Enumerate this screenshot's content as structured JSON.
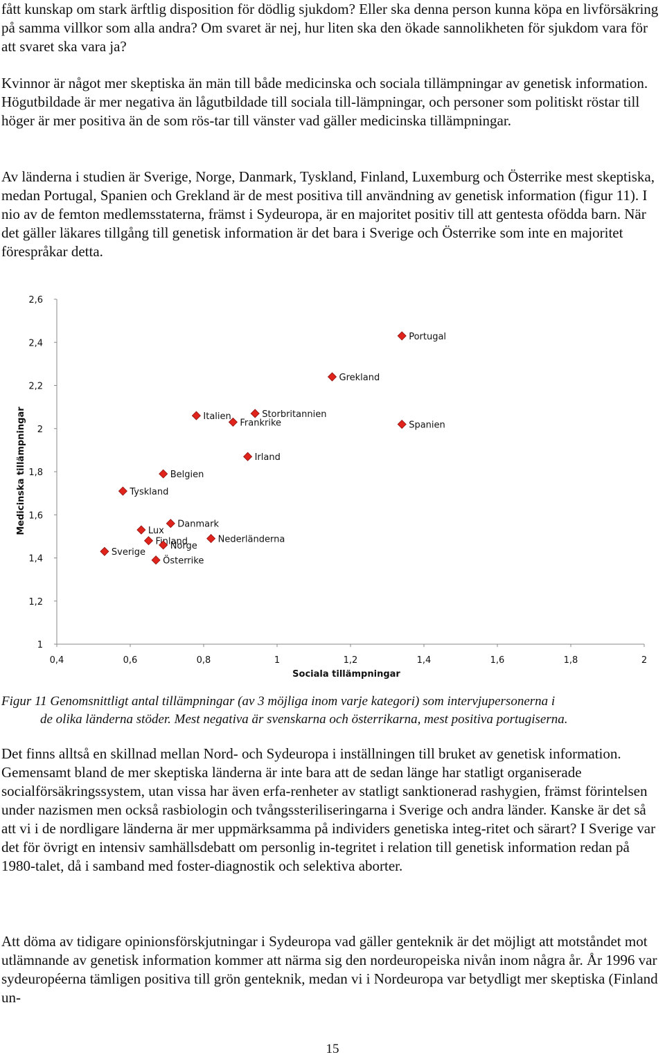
{
  "paragraphs": {
    "p1": "fått kunskap om stark ärftlig disposition för dödlig sjukdom? Eller ska denna person kunna köpa en livförsäkring på samma villkor som alla andra? Om svaret är nej, hur liten ska den ökade sannolikheten för sjukdom vara för att svaret ska vara ja?",
    "p2": "Kvinnor är något mer skeptiska än män till både medicinska och sociala tillämpningar av genetisk information. Högutbildade är mer negativa än lågutbildade till sociala till-lämpningar, och personer som politiskt röstar till höger är mer positiva än de som rös-tar till vänster vad gäller medicinska tillämpningar.",
    "p3": "Av länderna i studien är Sverige, Norge, Danmark, Tyskland, Finland, Luxemburg och Österrike mest skeptiska, medan Portugal, Spanien och Grekland är de mest positiva till användning av genetisk information (figur 11). I nio av de femton medlemsstaterna, främst i Sydeuropa, är en majoritet positiv till att gentesta ofödda barn. När det gäller läkares tillgång till genetisk information är det bara i Sverige och Österrike som inte en majoritet förespråkar detta.",
    "p4": "Det finns alltså en skillnad mellan Nord- och Sydeuropa i inställningen till bruket av genetisk information. Gemensamt bland de mer skeptiska länderna är inte bara att de sedan länge har statligt organiserade socialförsäkringssystem, utan vissa har även erfa-renheter av statligt sanktionerad rashygien, främst förintelsen under nazismen men också rasbiologin och tvångssteriliseringarna i Sverige och andra länder. Kanske är det så att vi i de nordligare länderna är mer uppmärksamma på individers genetiska integ-ritet och särart? I Sverige var det för övrigt en intensiv samhällsdebatt om personlig in-tegritet i relation till genetisk information redan på 1980-talet, då i samband med foster-diagnostik och selektiva aborter.",
    "p5": "Att döma av tidigare opinionsförskjutningar i Sydeuropa vad gäller genteknik är det möjligt att motståndet mot utlämnande av genetisk information kommer att närma sig den nordeuropeiska nivån inom några år. År 1996 var sydeuropéerna tämligen positiva till grön genteknik, medan vi i Nordeuropa var betydligt mer skeptiska (Finland un-"
  },
  "caption": {
    "line1": "Figur 11 Genomsnittligt antal tillämpningar (av 3 möjliga inom varje kategori) som intervjupersonerna i",
    "line2": "de olika länderna stöder. Mest negativa är svenskarna och österrikarna, mest positiva portugiserna."
  },
  "page_number": "15",
  "colors": {
    "marker": "#e0241b",
    "marker_edge": "#8a1010",
    "axis": "#888888",
    "text": "#111111"
  },
  "chart_data": {
    "type": "scatter",
    "title": "",
    "xlabel": "Sociala tillämpningar",
    "ylabel": "Medicinska tillämpningar",
    "xlim": [
      0.4,
      2
    ],
    "ylim": [
      1,
      2.6
    ],
    "x_ticks": [
      0.4,
      0.6,
      0.8,
      1,
      1.2,
      1.4,
      1.6,
      1.8,
      2
    ],
    "x_tick_labels": [
      "0,4",
      "0,6",
      "0,8",
      "1",
      "1,2",
      "1,4",
      "1,6",
      "1,8",
      "2"
    ],
    "y_ticks": [
      2.6,
      2.4,
      2.2,
      2,
      1.8,
      1.6,
      1.4,
      1.2,
      1
    ],
    "y_tick_labels": [
      "2,6",
      "2,4",
      "2,2",
      "2",
      "1,8",
      "1,6",
      "1,4",
      "1,2",
      "1"
    ],
    "grid": false,
    "marker": "diamond",
    "points": [
      {
        "label": "Portugal",
        "x": 1.34,
        "y": 2.43
      },
      {
        "label": "Grekland",
        "x": 1.15,
        "y": 2.24
      },
      {
        "label": "Italien",
        "x": 0.78,
        "y": 2.06
      },
      {
        "label": "Storbritannien",
        "x": 0.94,
        "y": 2.07
      },
      {
        "label": "Frankrike",
        "x": 0.88,
        "y": 2.03
      },
      {
        "label": "Spanien",
        "x": 1.34,
        "y": 2.02
      },
      {
        "label": "Irland",
        "x": 0.92,
        "y": 1.87
      },
      {
        "label": "Belgien",
        "x": 0.69,
        "y": 1.79
      },
      {
        "label": "Tyskland",
        "x": 0.58,
        "y": 1.71
      },
      {
        "label": "Lux",
        "x": 0.63,
        "y": 1.53
      },
      {
        "label": "Danmark",
        "x": 0.71,
        "y": 1.56
      },
      {
        "label": "Finland",
        "x": 0.65,
        "y": 1.48
      },
      {
        "label": "Norge",
        "x": 0.69,
        "y": 1.46
      },
      {
        "label": "Nederländerna",
        "x": 0.82,
        "y": 1.49
      },
      {
        "label": "Sverige",
        "x": 0.53,
        "y": 1.43
      },
      {
        "label": "Österrike",
        "x": 0.67,
        "y": 1.39
      }
    ]
  }
}
